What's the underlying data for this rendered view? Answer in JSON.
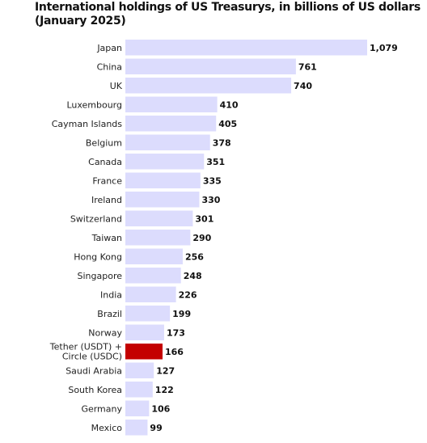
{
  "chart_data": {
    "type": "bar",
    "orientation": "horizontal",
    "title": "International holdings of US Treasurys, in billions of US dollars (January 2025)",
    "categories": [
      "Japan",
      "China",
      "UK",
      "Luxembourg",
      "Cayman Islands",
      "Belgium",
      "Canada",
      "France",
      "Ireland",
      "Switzerland",
      "Taiwan",
      "Hong Kong",
      "Singapore",
      "India",
      "Brazil",
      "Norway",
      "Tether (USDT) + Circle (USDC)",
      "Saudi Arabia",
      "South Korea",
      "Germany",
      "Mexico"
    ],
    "values": [
      1079,
      761,
      740,
      410,
      405,
      378,
      351,
      335,
      330,
      301,
      290,
      256,
      248,
      226,
      199,
      173,
      166,
      127,
      122,
      106,
      99
    ],
    "value_labels": [
      "1,079",
      "761",
      "740",
      "410",
      "405",
      "378",
      "351",
      "335",
      "330",
      "301",
      "290",
      "256",
      "248",
      "226",
      "199",
      "173",
      "166",
      "127",
      "122",
      "106",
      "99"
    ],
    "highlight_category": "Tether (USDT) + Circle (USDC)",
    "xlim": [
      0,
      1079
    ],
    "grid": false,
    "legend": "none",
    "colors": {
      "bar": "#dcdcfd",
      "highlight": "#c40000",
      "text": "#111111"
    }
  }
}
